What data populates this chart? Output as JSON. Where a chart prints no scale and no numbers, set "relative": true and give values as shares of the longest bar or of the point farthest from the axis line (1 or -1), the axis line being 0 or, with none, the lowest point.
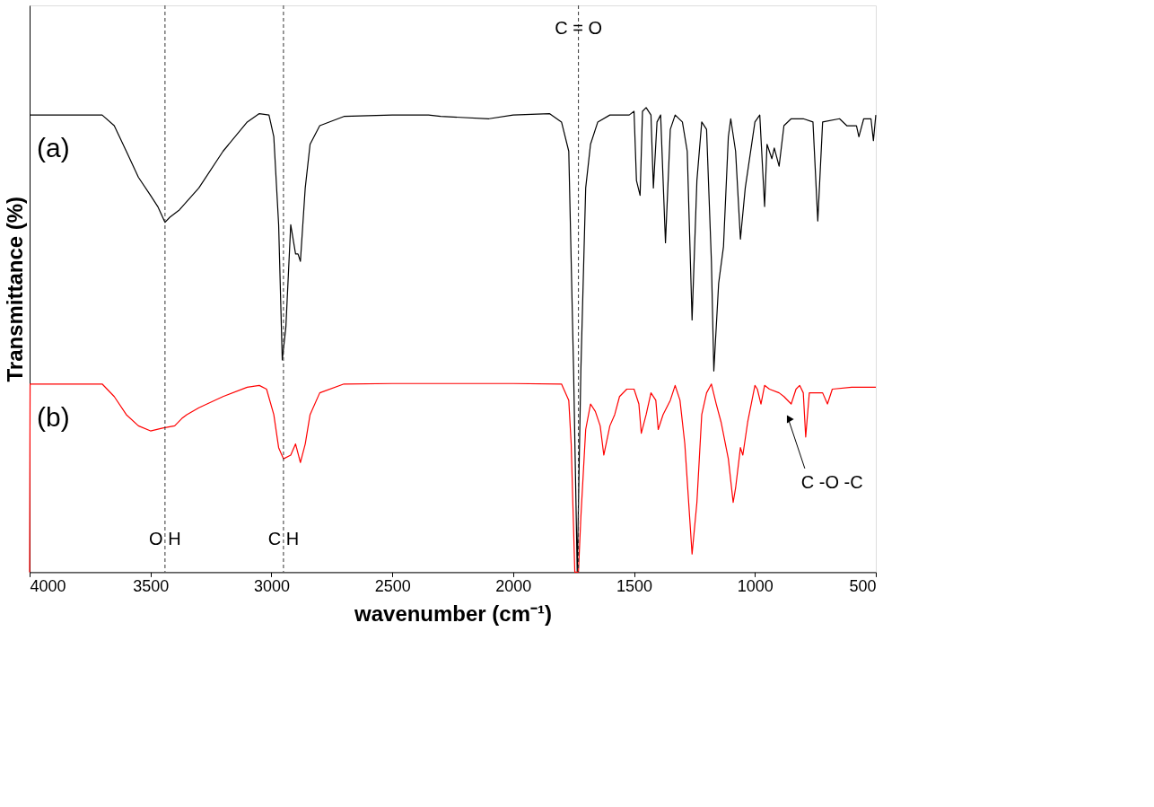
{
  "chart_data": {
    "type": "line",
    "relative": true,
    "xlabel": "wavenumber (cm⁻¹)",
    "ylabel": "Transmittance (%)",
    "xlim": [
      4000,
      500
    ],
    "xticks": [
      4000,
      3500,
      3000,
      2500,
      2000,
      1500,
      1000,
      500
    ],
    "grid": false,
    "legend": false,
    "line_style": "solid",
    "marker": "none",
    "series": [
      {
        "name": "(a)",
        "color": "#000000",
        "x": [
          4000,
          3700,
          3650,
          3600,
          3550,
          3500,
          3470,
          3440,
          3420,
          3380,
          3300,
          3200,
          3100,
          3050,
          3010,
          2990,
          2970,
          2955,
          2940,
          2920,
          2900,
          2890,
          2880,
          2860,
          2840,
          2800,
          2700,
          2500,
          2350,
          2300,
          2100,
          2000,
          1850,
          1800,
          1770,
          1750,
          1735,
          1720,
          1700,
          1680,
          1650,
          1600,
          1520,
          1500,
          1490,
          1475,
          1465,
          1450,
          1430,
          1420,
          1405,
          1390,
          1370,
          1350,
          1330,
          1300,
          1280,
          1260,
          1240,
          1220,
          1200,
          1180,
          1170,
          1150,
          1130,
          1110,
          1100,
          1080,
          1060,
          1040,
          1000,
          980,
          960,
          950,
          930,
          920,
          900,
          880,
          850,
          800,
          760,
          740,
          720,
          650,
          620,
          580,
          570,
          550,
          520,
          510,
          500
        ],
        "values": [
          0.984,
          0.984,
          0.961,
          0.906,
          0.85,
          0.811,
          0.787,
          0.753,
          0.764,
          0.78,
          0.827,
          0.906,
          0.969,
          0.987,
          0.984,
          0.937,
          0.748,
          0.457,
          0.528,
          0.748,
          0.685,
          0.685,
          0.669,
          0.827,
          0.921,
          0.961,
          0.981,
          0.984,
          0.984,
          0.981,
          0.976,
          0.984,
          0.987,
          0.969,
          0.906,
          0.433,
          0,
          0.433,
          0.827,
          0.921,
          0.969,
          0.984,
          0.984,
          0.992,
          0.843,
          0.811,
          0.992,
          1.0,
          0.984,
          0.827,
          0.969,
          0.984,
          0.709,
          0.953,
          0.984,
          0.969,
          0.906,
          0.543,
          0.843,
          0.969,
          0.953,
          0.669,
          0.433,
          0.622,
          0.701,
          0.937,
          0.976,
          0.906,
          0.717,
          0.827,
          0.969,
          0.984,
          0.787,
          0.921,
          0.89,
          0.913,
          0.874,
          0.961,
          0.976,
          0.976,
          0.969,
          0.756,
          0.969,
          0.976,
          0.961,
          0.961,
          0.937,
          0.976,
          0.976,
          0.929,
          0.984
        ]
      },
      {
        "name": "(b)",
        "color": "#ff0000",
        "x": [
          4000,
          3998,
          3700,
          3650,
          3600,
          3550,
          3500,
          3450,
          3400,
          3370,
          3350,
          3300,
          3200,
          3100,
          3050,
          3020,
          2990,
          2970,
          2950,
          2920,
          2900,
          2880,
          2860,
          2840,
          2800,
          2700,
          2500,
          2000,
          1800,
          1770,
          1760,
          1745,
          1730,
          1720,
          1700,
          1680,
          1660,
          1640,
          1625,
          1600,
          1580,
          1560,
          1530,
          1500,
          1480,
          1470,
          1450,
          1430,
          1410,
          1400,
          1380,
          1350,
          1330,
          1310,
          1290,
          1270,
          1260,
          1240,
          1220,
          1200,
          1180,
          1160,
          1140,
          1110,
          1090,
          1080,
          1060,
          1050,
          1030,
          1000,
          990,
          975,
          960,
          940,
          900,
          880,
          850,
          830,
          815,
          800,
          790,
          775,
          720,
          700,
          680,
          600,
          500
        ],
        "values": [
          0,
          0.405,
          0.405,
          0.378,
          0.339,
          0.315,
          0.304,
          0.31,
          0.315,
          0.331,
          0.339,
          0.354,
          0.378,
          0.398,
          0.402,
          0.394,
          0.339,
          0.268,
          0.244,
          0.252,
          0.276,
          0.236,
          0.276,
          0.339,
          0.386,
          0.405,
          0.406,
          0.406,
          0.405,
          0.37,
          0.276,
          0,
          0,
          0.118,
          0.307,
          0.362,
          0.346,
          0.315,
          0.252,
          0.315,
          0.339,
          0.378,
          0.394,
          0.394,
          0.362,
          0.299,
          0.339,
          0.386,
          0.37,
          0.307,
          0.339,
          0.37,
          0.402,
          0.37,
          0.276,
          0.118,
          0.039,
          0.15,
          0.339,
          0.386,
          0.405,
          0.362,
          0.323,
          0.244,
          0.15,
          0.181,
          0.268,
          0.252,
          0.323,
          0.402,
          0.394,
          0.362,
          0.402,
          0.394,
          0.386,
          0.378,
          0.362,
          0.394,
          0.402,
          0.386,
          0.291,
          0.386,
          0.386,
          0.362,
          0.394,
          0.398,
          0.398
        ]
      }
    ],
    "ref_lines": [
      {
        "axis": "x",
        "value": 3440,
        "line_style": "dashed"
      },
      {
        "axis": "x",
        "value": 2950,
        "line_style": "dashed"
      },
      {
        "axis": "x",
        "value": 1730,
        "line_style": "dashed"
      }
    ],
    "annotations": [
      {
        "text": "O H",
        "x": 3440,
        "y": 0.07
      },
      {
        "text": "C H",
        "x": 2950,
        "y": 0.07
      },
      {
        "text": "C = O",
        "x": 1730,
        "y": 1.17
      },
      "C -O -C"
    ]
  }
}
